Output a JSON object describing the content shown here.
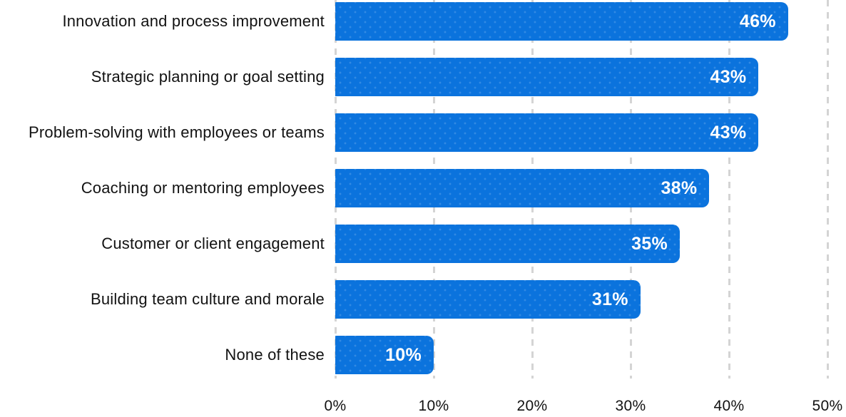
{
  "chart_data": {
    "type": "bar",
    "orientation": "horizontal",
    "title": "",
    "xlabel": "",
    "ylabel": "",
    "categories": [
      "Innovation and process improvement",
      "Strategic planning or goal setting",
      "Problem-solving with employees or teams",
      "Coaching or mentoring employees",
      "Customer or client engagement",
      "Building team culture and morale",
      "None of these"
    ],
    "values": [
      46,
      43,
      43,
      38,
      35,
      31,
      10
    ],
    "value_labels": [
      "46%",
      "43%",
      "43%",
      "38%",
      "35%",
      "31%",
      "10%"
    ],
    "xlim": [
      0,
      50
    ],
    "x_ticks": [
      "0%",
      "10%",
      "20%",
      "30%",
      "40%",
      "50%"
    ],
    "x_tick_values": [
      0,
      10,
      20,
      30,
      40,
      50
    ],
    "grid": "vertical-dashed",
    "legend": "none",
    "colors": {
      "bar": "#0B73DD",
      "value_text": "#FFFFFF",
      "label_text": "#121212",
      "gridline": "#D4D4D4",
      "background": "#FFFFFF"
    }
  }
}
